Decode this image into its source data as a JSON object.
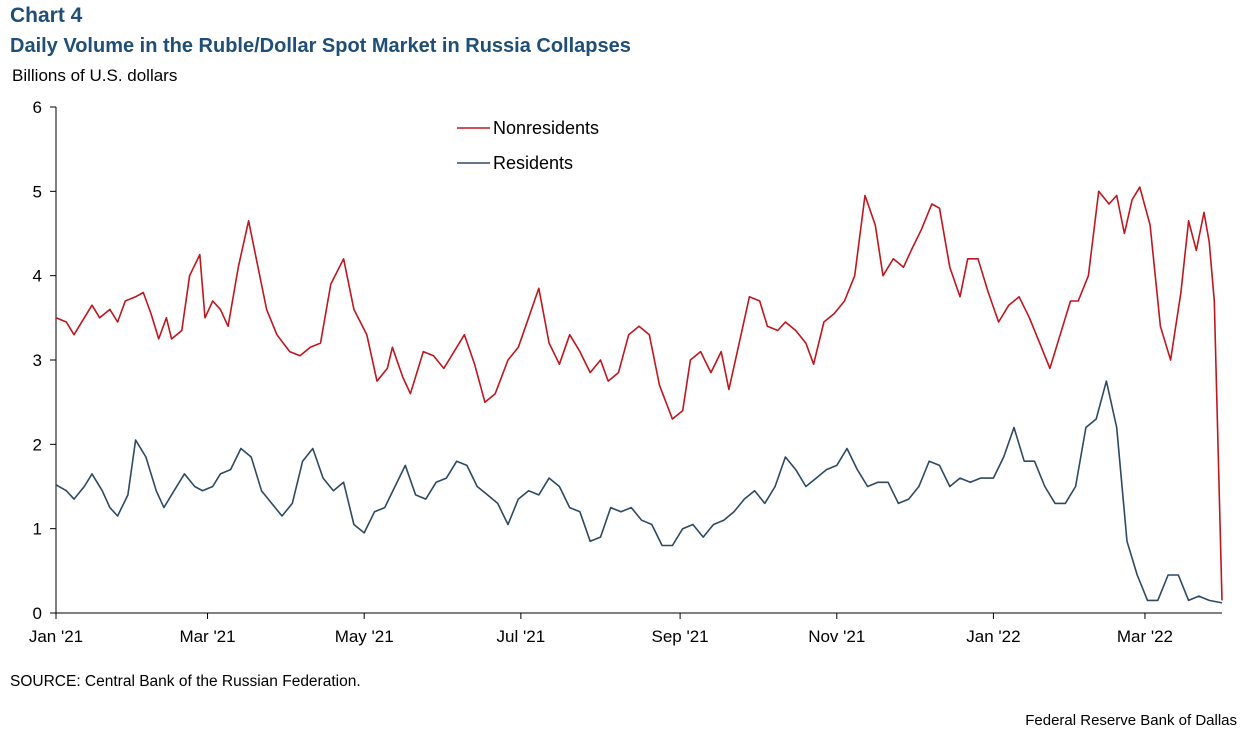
{
  "header": {
    "chart_number": "Chart 4",
    "title": "Daily Volume in the Ruble/Dollar Spot Market in Russia Collapses",
    "unit": "Billions of U.S. dollars"
  },
  "footer": {
    "source": "SOURCE: Central Bank of the Russian Federation.",
    "credit": "Federal Reserve Bank of Dallas"
  },
  "chart_data": {
    "type": "line",
    "title": "Daily Volume in the Ruble/Dollar Spot Market in Russia Collapses",
    "ylabel": "Billions of U.S. dollars",
    "ylim": [
      0,
      6
    ],
    "yticks": [
      0,
      1,
      2,
      3,
      4,
      5,
      6
    ],
    "xlim": [
      "2021-01-01",
      "2022-03-31"
    ],
    "xticks": [
      {
        "date": "2021-01-01",
        "label": "Jan '21"
      },
      {
        "date": "2021-03-01",
        "label": "Mar '21"
      },
      {
        "date": "2021-05-01",
        "label": "May '21"
      },
      {
        "date": "2021-07-01",
        "label": "Jul '21"
      },
      {
        "date": "2021-09-01",
        "label": "Sep '21"
      },
      {
        "date": "2021-11-01",
        "label": "Nov '21"
      },
      {
        "date": "2022-01-01",
        "label": "Jan '22"
      },
      {
        "date": "2022-03-01",
        "label": "Mar '22"
      }
    ],
    "grid": false,
    "legend_position": "top-center",
    "series": [
      {
        "name": "Nonresidents",
        "color": "#c0161f",
        "points": [
          [
            "2021-01-01",
            3.5
          ],
          [
            "2021-01-05",
            3.45
          ],
          [
            "2021-01-08",
            3.3
          ],
          [
            "2021-01-12",
            3.5
          ],
          [
            "2021-01-15",
            3.65
          ],
          [
            "2021-01-18",
            3.5
          ],
          [
            "2021-01-22",
            3.6
          ],
          [
            "2021-01-25",
            3.45
          ],
          [
            "2021-01-28",
            3.7
          ],
          [
            "2021-02-01",
            3.75
          ],
          [
            "2021-02-04",
            3.8
          ],
          [
            "2021-02-07",
            3.55
          ],
          [
            "2021-02-10",
            3.25
          ],
          [
            "2021-02-13",
            3.5
          ],
          [
            "2021-02-15",
            3.25
          ],
          [
            "2021-02-19",
            3.35
          ],
          [
            "2021-02-22",
            4.0
          ],
          [
            "2021-02-26",
            4.25
          ],
          [
            "2021-02-28",
            3.5
          ],
          [
            "2021-03-03",
            3.7
          ],
          [
            "2021-03-06",
            3.6
          ],
          [
            "2021-03-09",
            3.4
          ],
          [
            "2021-03-13",
            4.1
          ],
          [
            "2021-03-17",
            4.65
          ],
          [
            "2021-03-20",
            4.2
          ],
          [
            "2021-03-24",
            3.6
          ],
          [
            "2021-03-28",
            3.3
          ],
          [
            "2021-04-02",
            3.1
          ],
          [
            "2021-04-06",
            3.05
          ],
          [
            "2021-04-10",
            3.15
          ],
          [
            "2021-04-14",
            3.2
          ],
          [
            "2021-04-18",
            3.9
          ],
          [
            "2021-04-23",
            4.2
          ],
          [
            "2021-04-27",
            3.6
          ],
          [
            "2021-05-02",
            3.3
          ],
          [
            "2021-05-06",
            2.75
          ],
          [
            "2021-05-10",
            2.9
          ],
          [
            "2021-05-12",
            3.15
          ],
          [
            "2021-05-16",
            2.8
          ],
          [
            "2021-05-19",
            2.6
          ],
          [
            "2021-05-24",
            3.1
          ],
          [
            "2021-05-28",
            3.05
          ],
          [
            "2021-06-01",
            2.9
          ],
          [
            "2021-06-05",
            3.1
          ],
          [
            "2021-06-09",
            3.3
          ],
          [
            "2021-06-13",
            2.95
          ],
          [
            "2021-06-17",
            2.5
          ],
          [
            "2021-06-21",
            2.6
          ],
          [
            "2021-06-26",
            3.0
          ],
          [
            "2021-06-30",
            3.15
          ],
          [
            "2021-07-04",
            3.5
          ],
          [
            "2021-07-08",
            3.85
          ],
          [
            "2021-07-12",
            3.2
          ],
          [
            "2021-07-16",
            2.95
          ],
          [
            "2021-07-20",
            3.3
          ],
          [
            "2021-07-24",
            3.1
          ],
          [
            "2021-07-28",
            2.85
          ],
          [
            "2021-08-01",
            3.0
          ],
          [
            "2021-08-04",
            2.75
          ],
          [
            "2021-08-08",
            2.85
          ],
          [
            "2021-08-12",
            3.3
          ],
          [
            "2021-08-16",
            3.4
          ],
          [
            "2021-08-20",
            3.3
          ],
          [
            "2021-08-24",
            2.7
          ],
          [
            "2021-08-29",
            2.3
          ],
          [
            "2021-09-02",
            2.4
          ],
          [
            "2021-09-05",
            3.0
          ],
          [
            "2021-09-09",
            3.1
          ],
          [
            "2021-09-13",
            2.85
          ],
          [
            "2021-09-17",
            3.1
          ],
          [
            "2021-09-20",
            2.65
          ],
          [
            "2021-09-24",
            3.2
          ],
          [
            "2021-09-28",
            3.75
          ],
          [
            "2021-10-02",
            3.7
          ],
          [
            "2021-10-05",
            3.4
          ],
          [
            "2021-10-09",
            3.35
          ],
          [
            "2021-10-12",
            3.45
          ],
          [
            "2021-10-16",
            3.35
          ],
          [
            "2021-10-20",
            3.2
          ],
          [
            "2021-10-23",
            2.95
          ],
          [
            "2021-10-27",
            3.45
          ],
          [
            "2021-10-31",
            3.55
          ],
          [
            "2021-11-04",
            3.7
          ],
          [
            "2021-11-08",
            4.0
          ],
          [
            "2021-11-12",
            4.95
          ],
          [
            "2021-11-16",
            4.6
          ],
          [
            "2021-11-19",
            4.0
          ],
          [
            "2021-11-23",
            4.2
          ],
          [
            "2021-11-27",
            4.1
          ],
          [
            "2021-11-30",
            4.3
          ],
          [
            "2021-12-04",
            4.55
          ],
          [
            "2021-12-08",
            4.85
          ],
          [
            "2021-12-11",
            4.8
          ],
          [
            "2021-12-15",
            4.1
          ],
          [
            "2021-12-19",
            3.75
          ],
          [
            "2021-12-22",
            4.2
          ],
          [
            "2021-12-26",
            4.2
          ],
          [
            "2021-12-30",
            3.8
          ],
          [
            "2022-01-03",
            3.45
          ],
          [
            "2022-01-07",
            3.65
          ],
          [
            "2022-01-11",
            3.75
          ],
          [
            "2022-01-15",
            3.5
          ],
          [
            "2022-01-19",
            3.2
          ],
          [
            "2022-01-23",
            2.9
          ],
          [
            "2022-01-27",
            3.3
          ],
          [
            "2022-01-31",
            3.7
          ],
          [
            "2022-02-03",
            3.7
          ],
          [
            "2022-02-07",
            4.0
          ],
          [
            "2022-02-11",
            5.0
          ],
          [
            "2022-02-15",
            4.85
          ],
          [
            "2022-02-18",
            4.95
          ],
          [
            "2022-02-21",
            4.5
          ],
          [
            "2022-02-24",
            4.9
          ],
          [
            "2022-02-27",
            5.05
          ],
          [
            "2022-03-03",
            4.6
          ],
          [
            "2022-03-07",
            3.4
          ],
          [
            "2022-03-11",
            3.0
          ],
          [
            "2022-03-15",
            3.8
          ],
          [
            "2022-03-18",
            4.65
          ],
          [
            "2022-03-21",
            4.3
          ],
          [
            "2022-03-24",
            4.75
          ],
          [
            "2022-03-26",
            4.4
          ],
          [
            "2022-03-28",
            3.7
          ],
          [
            "2022-03-31",
            0.15
          ]
        ]
      },
      {
        "name": "Residents",
        "color": "#2e4a62",
        "points": [
          [
            "2021-01-01",
            1.52
          ],
          [
            "2021-01-05",
            1.45
          ],
          [
            "2021-01-08",
            1.35
          ],
          [
            "2021-01-12",
            1.5
          ],
          [
            "2021-01-15",
            1.65
          ],
          [
            "2021-01-19",
            1.45
          ],
          [
            "2021-01-22",
            1.25
          ],
          [
            "2021-01-25",
            1.15
          ],
          [
            "2021-01-29",
            1.4
          ],
          [
            "2021-02-01",
            2.05
          ],
          [
            "2021-02-05",
            1.85
          ],
          [
            "2021-02-09",
            1.45
          ],
          [
            "2021-02-12",
            1.25
          ],
          [
            "2021-02-16",
            1.45
          ],
          [
            "2021-02-20",
            1.65
          ],
          [
            "2021-02-24",
            1.5
          ],
          [
            "2021-02-27",
            1.45
          ],
          [
            "2021-03-03",
            1.5
          ],
          [
            "2021-03-06",
            1.65
          ],
          [
            "2021-03-10",
            1.7
          ],
          [
            "2021-03-14",
            1.95
          ],
          [
            "2021-03-18",
            1.85
          ],
          [
            "2021-03-22",
            1.45
          ],
          [
            "2021-03-26",
            1.3
          ],
          [
            "2021-03-30",
            1.15
          ],
          [
            "2021-04-03",
            1.3
          ],
          [
            "2021-04-07",
            1.8
          ],
          [
            "2021-04-11",
            1.95
          ],
          [
            "2021-04-15",
            1.6
          ],
          [
            "2021-04-19",
            1.45
          ],
          [
            "2021-04-23",
            1.55
          ],
          [
            "2021-04-27",
            1.05
          ],
          [
            "2021-05-01",
            0.95
          ],
          [
            "2021-05-05",
            1.2
          ],
          [
            "2021-05-09",
            1.25
          ],
          [
            "2021-05-13",
            1.5
          ],
          [
            "2021-05-17",
            1.75
          ],
          [
            "2021-05-21",
            1.4
          ],
          [
            "2021-05-25",
            1.35
          ],
          [
            "2021-05-29",
            1.55
          ],
          [
            "2021-06-02",
            1.6
          ],
          [
            "2021-06-06",
            1.8
          ],
          [
            "2021-06-10",
            1.75
          ],
          [
            "2021-06-14",
            1.5
          ],
          [
            "2021-06-18",
            1.4
          ],
          [
            "2021-06-22",
            1.3
          ],
          [
            "2021-06-26",
            1.05
          ],
          [
            "2021-06-30",
            1.35
          ],
          [
            "2021-07-04",
            1.45
          ],
          [
            "2021-07-08",
            1.4
          ],
          [
            "2021-07-12",
            1.6
          ],
          [
            "2021-07-16",
            1.5
          ],
          [
            "2021-07-20",
            1.25
          ],
          [
            "2021-07-24",
            1.2
          ],
          [
            "2021-07-28",
            0.85
          ],
          [
            "2021-08-01",
            0.9
          ],
          [
            "2021-08-05",
            1.25
          ],
          [
            "2021-08-09",
            1.2
          ],
          [
            "2021-08-13",
            1.25
          ],
          [
            "2021-08-17",
            1.1
          ],
          [
            "2021-08-21",
            1.05
          ],
          [
            "2021-08-25",
            0.8
          ],
          [
            "2021-08-29",
            0.8
          ],
          [
            "2021-09-02",
            1.0
          ],
          [
            "2021-09-06",
            1.05
          ],
          [
            "2021-09-10",
            0.9
          ],
          [
            "2021-09-14",
            1.05
          ],
          [
            "2021-09-18",
            1.1
          ],
          [
            "2021-09-22",
            1.2
          ],
          [
            "2021-09-26",
            1.35
          ],
          [
            "2021-09-30",
            1.45
          ],
          [
            "2021-10-04",
            1.3
          ],
          [
            "2021-10-08",
            1.5
          ],
          [
            "2021-10-12",
            1.85
          ],
          [
            "2021-10-16",
            1.7
          ],
          [
            "2021-10-20",
            1.5
          ],
          [
            "2021-10-24",
            1.6
          ],
          [
            "2021-10-28",
            1.7
          ],
          [
            "2021-11-01",
            1.75
          ],
          [
            "2021-11-05",
            1.95
          ],
          [
            "2021-11-09",
            1.7
          ],
          [
            "2021-11-13",
            1.5
          ],
          [
            "2021-11-17",
            1.55
          ],
          [
            "2021-11-21",
            1.55
          ],
          [
            "2021-11-25",
            1.3
          ],
          [
            "2021-11-29",
            1.35
          ],
          [
            "2021-12-03",
            1.5
          ],
          [
            "2021-12-07",
            1.8
          ],
          [
            "2021-12-11",
            1.75
          ],
          [
            "2021-12-15",
            1.5
          ],
          [
            "2021-12-19",
            1.6
          ],
          [
            "2021-12-23",
            1.55
          ],
          [
            "2021-12-27",
            1.6
          ],
          [
            "2022-01-01",
            1.6
          ],
          [
            "2022-01-05",
            1.85
          ],
          [
            "2022-01-09",
            2.2
          ],
          [
            "2022-01-13",
            1.8
          ],
          [
            "2022-01-17",
            1.8
          ],
          [
            "2022-01-21",
            1.5
          ],
          [
            "2022-01-25",
            1.3
          ],
          [
            "2022-01-29",
            1.3
          ],
          [
            "2022-02-02",
            1.5
          ],
          [
            "2022-02-06",
            2.2
          ],
          [
            "2022-02-10",
            2.3
          ],
          [
            "2022-02-14",
            2.75
          ],
          [
            "2022-02-18",
            2.2
          ],
          [
            "2022-02-22",
            0.85
          ],
          [
            "2022-02-26",
            0.45
          ],
          [
            "2022-03-02",
            0.15
          ],
          [
            "2022-03-06",
            0.15
          ],
          [
            "2022-03-10",
            0.45
          ],
          [
            "2022-03-14",
            0.45
          ],
          [
            "2022-03-18",
            0.15
          ],
          [
            "2022-03-22",
            0.2
          ],
          [
            "2022-03-26",
            0.15
          ],
          [
            "2022-03-31",
            0.12
          ]
        ]
      }
    ]
  }
}
